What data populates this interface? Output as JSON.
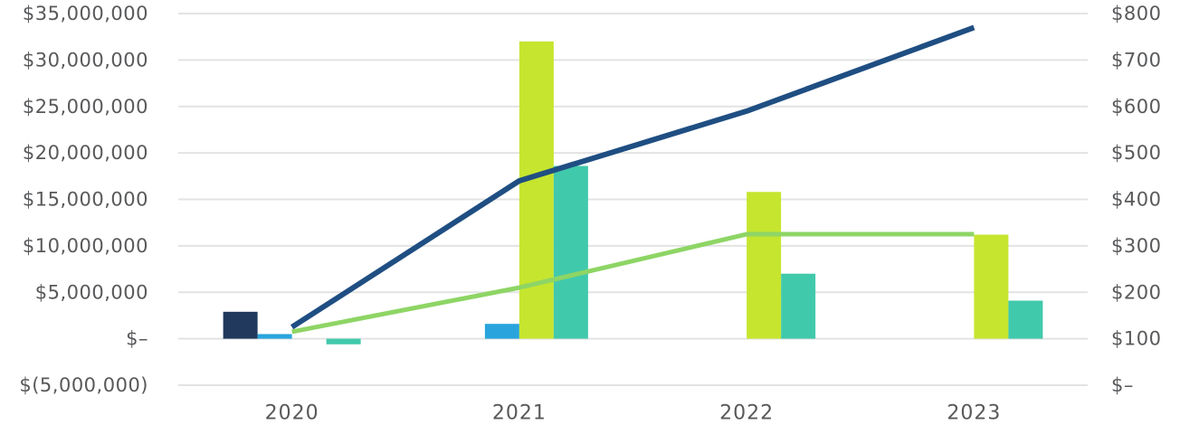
{
  "chart_data": {
    "type": "combo-bar-line",
    "title": "",
    "xlabel": "",
    "ylabel_left": "",
    "ylabel_right": "",
    "categories": [
      "2020",
      "2021",
      "2022",
      "2023"
    ],
    "bar_series": [
      {
        "name": "navy-bars",
        "color": "#20395c",
        "axis": "left",
        "values": [
          2900000,
          0,
          0,
          0
        ]
      },
      {
        "name": "blue-bars",
        "color": "#29a4dc",
        "axis": "left",
        "values": [
          500000,
          1600000,
          0,
          0
        ]
      },
      {
        "name": "chartreuse-bars",
        "color": "#c6e52f",
        "axis": "left",
        "values": [
          0,
          32000000,
          15800000,
          11200000
        ]
      },
      {
        "name": "teal-bars",
        "color": "#41c9ac",
        "axis": "left",
        "values": [
          -600000,
          18600000,
          7000000,
          4100000
        ]
      }
    ],
    "line_series": [
      {
        "name": "navy-line",
        "color": "#1f4e82",
        "axis": "right",
        "values": [
          125,
          440,
          590,
          770
        ]
      },
      {
        "name": "green-line",
        "color": "#8ed565",
        "axis": "right",
        "values": [
          115,
          210,
          325,
          325
        ]
      }
    ],
    "left_axis": {
      "min": -5000000,
      "max": 35000000,
      "step": 5000000,
      "tick_labels": [
        "$35,000,000",
        "$30,000,000",
        "$25,000,000",
        "$20,000,000",
        "$15,000,000",
        "$10,000,000",
        "$5,000,000",
        "$–",
        "$(5,000,000)"
      ]
    },
    "right_axis": {
      "min": 0,
      "max": 800,
      "step": 100,
      "tick_labels": [
        "$800",
        "$700",
        "$600",
        "$500",
        "$400",
        "$300",
        "$200",
        "$100",
        "$–"
      ]
    },
    "grid": true,
    "legend": "none",
    "colors": {
      "gridline": "#e3e3e3",
      "axis_text": "#58595b",
      "background": "#ffffff"
    }
  }
}
